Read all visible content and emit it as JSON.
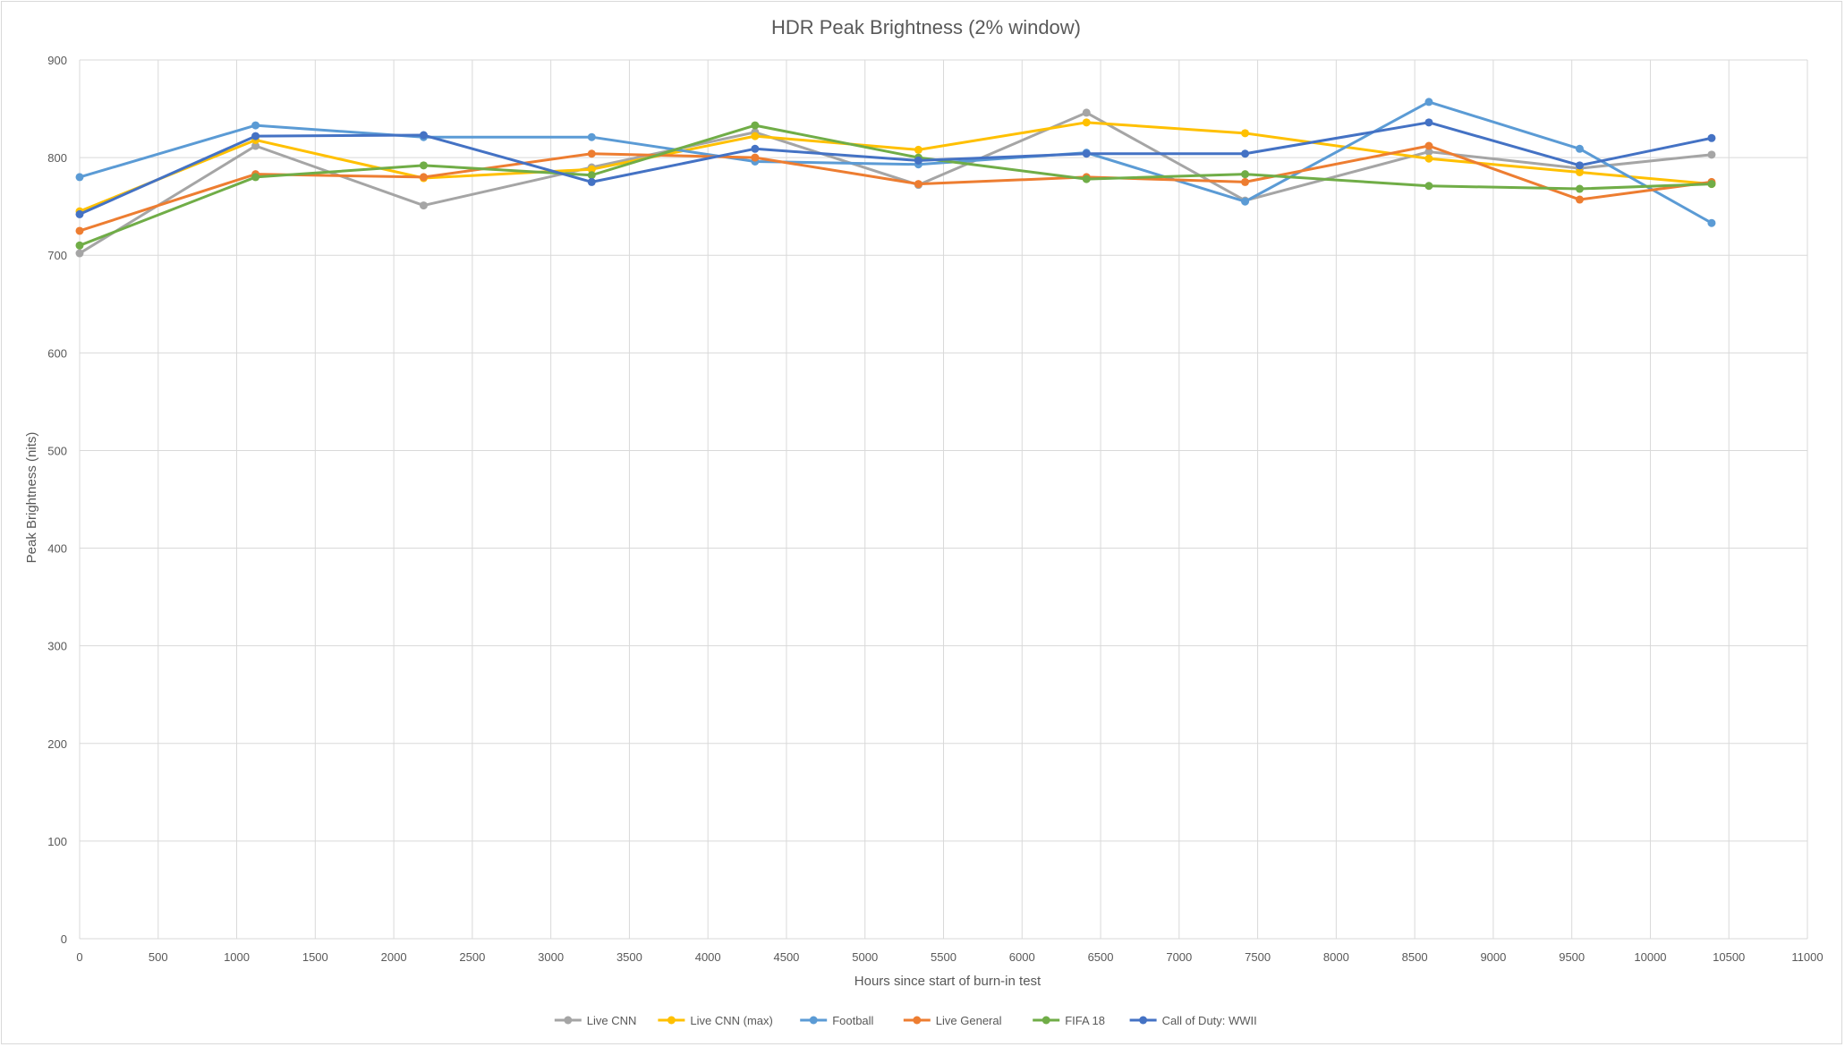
{
  "chart_data": {
    "type": "line",
    "title": "HDR Peak Brightness (2% window)",
    "xlabel": "Hours since start of burn-in test",
    "ylabel": "Peak Brightness (nits)",
    "xlim": [
      0,
      11000
    ],
    "ylim": [
      0,
      900
    ],
    "x_ticks": [
      "0",
      "500",
      "1000",
      "1500",
      "2000",
      "2500",
      "3000",
      "3500",
      "4000",
      "4500",
      "5000",
      "5500",
      "6000",
      "6500",
      "7000",
      "7500",
      "8000",
      "8500",
      "9000",
      "9500",
      "10000",
      "10500",
      "11000"
    ],
    "y_ticks": [
      "0",
      "100",
      "200",
      "300",
      "400",
      "500",
      "600",
      "700",
      "800",
      "900"
    ],
    "grid": "vertical and horizontal",
    "legend_position": "bottom",
    "x": [
      0,
      1120,
      2190,
      3260,
      4300,
      5340,
      6410,
      7420,
      8590,
      9550,
      10390
    ],
    "series": [
      {
        "name": "Live CNN",
        "color": "#a5a5a5",
        "values": [
          702,
          812,
          751,
          790,
          826,
          772,
          846,
          756,
          806,
          789,
          803
        ]
      },
      {
        "name": "Live CNN (max)",
        "color": "#ffc000",
        "values": [
          745,
          818,
          779,
          788,
          822,
          808,
          836,
          825,
          799,
          785,
          773
        ]
      },
      {
        "name": "Football",
        "color": "#5b9bd5",
        "values": [
          780,
          833,
          821,
          821,
          796,
          793,
          805,
          755,
          857,
          809,
          733
        ]
      },
      {
        "name": "Live General",
        "color": "#ed7d31",
        "values": [
          725,
          783,
          780,
          804,
          800,
          773,
          780,
          775,
          812,
          757,
          775
        ]
      },
      {
        "name": "FIFA 18",
        "color": "#70ad47",
        "values": [
          710,
          780,
          792,
          782,
          833,
          800,
          778,
          783,
          771,
          768,
          773
        ]
      },
      {
        "name": "Call of Duty: WWII",
        "color": "#4472c4",
        "values": [
          742,
          822,
          823,
          775,
          809,
          797,
          804,
          804,
          836,
          792,
          820
        ]
      }
    ]
  }
}
